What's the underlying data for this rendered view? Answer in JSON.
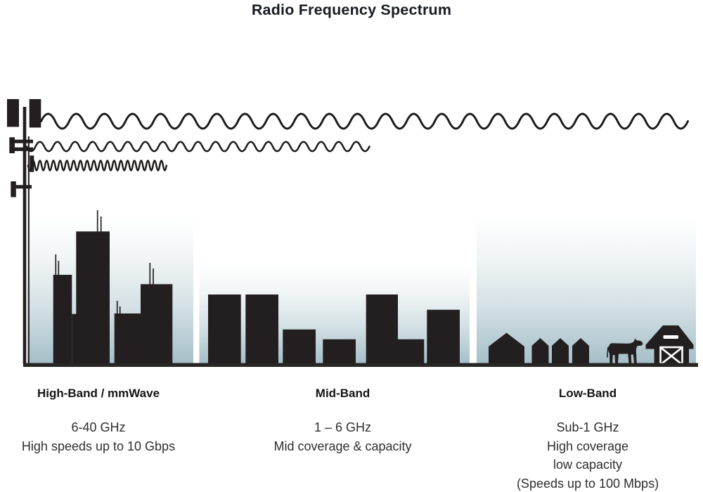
{
  "title": "Radio Frequency Spectrum",
  "colors": {
    "silhouette": "#231f20",
    "sky_top": "#ffffff",
    "sky_bottom": "#a6bfc9",
    "heading_text": "#151515",
    "body_text": "#2e2e2e",
    "title_text": "#171b24"
  },
  "bands": [
    {
      "name": "High-Band / mmWave",
      "frequency": "6-40 GHz",
      "lines": [
        "High speeds up to 10 Gbps"
      ],
      "scene": "city-skyscrapers",
      "wave": "short-wavelength-short-reach"
    },
    {
      "name": "Mid-Band",
      "frequency": "1 – 6 GHz",
      "lines": [
        "Mid coverage & capacity"
      ],
      "scene": "mid-rise-buildings",
      "wave": "medium-wavelength-medium-reach"
    },
    {
      "name": "Low-Band",
      "frequency": "Sub-1 GHz",
      "lines": [
        "High coverage",
        "low capacity",
        "(Speeds up to 100 Mbps)"
      ],
      "scene": "rural-houses-cow-barn",
      "wave": "long-wavelength-long-reach"
    }
  ]
}
